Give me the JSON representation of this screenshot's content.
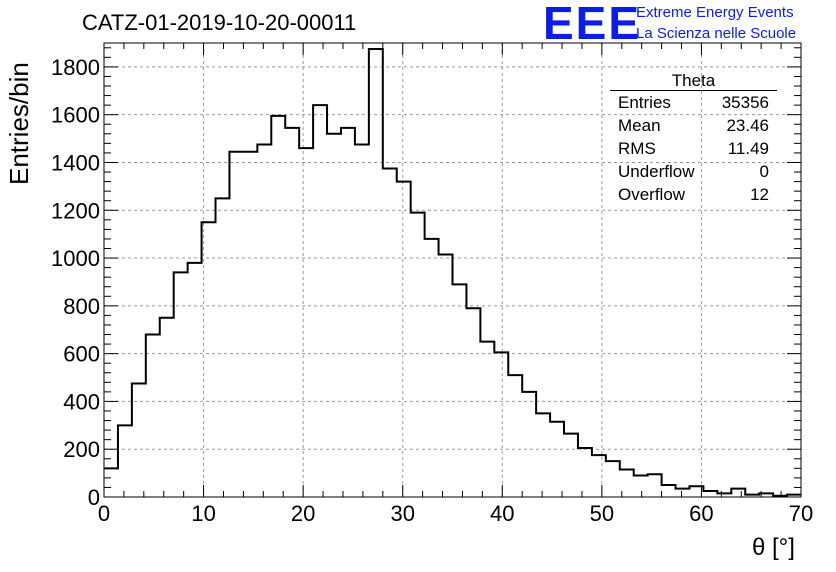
{
  "title": "CATZ-01-2019-10-20-00011",
  "logo": {
    "mark": "EEE",
    "line1": "Extreme Energy Events",
    "line2": "La Scienza nelle Scuole",
    "color": "#0a1ee6"
  },
  "stats": {
    "title": "Theta",
    "rows": [
      {
        "label": "Entries",
        "value": "35356"
      },
      {
        "label": "Mean",
        "value": "23.46"
      },
      {
        "label": "RMS",
        "value": "11.49"
      },
      {
        "label": "Underflow",
        "value": "0"
      },
      {
        "label": "Overflow",
        "value": "12"
      }
    ]
  },
  "chart_data": {
    "type": "bar",
    "title": "CATZ-01-2019-10-20-00011",
    "xlabel": "θ [°]",
    "ylabel": "Entries/bin",
    "xlim": [
      0,
      70
    ],
    "ylim": [
      0,
      1900
    ],
    "grid": true,
    "bin_width": 1.4,
    "bin_edges_start": 0,
    "xticks": [
      0,
      10,
      20,
      30,
      40,
      50,
      60,
      70
    ],
    "yticks": [
      0,
      200,
      400,
      600,
      800,
      1000,
      1200,
      1400,
      1600,
      1800
    ],
    "values": [
      120,
      300,
      475,
      680,
      750,
      940,
      980,
      1150,
      1250,
      1445,
      1445,
      1475,
      1595,
      1545,
      1460,
      1640,
      1520,
      1545,
      1475,
      1875,
      1375,
      1320,
      1190,
      1080,
      1015,
      890,
      790,
      650,
      605,
      510,
      440,
      350,
      315,
      265,
      205,
      175,
      150,
      115,
      90,
      95,
      50,
      35,
      45,
      25,
      15,
      35,
      10,
      15,
      5,
      10
    ],
    "line_color": "#000000"
  }
}
